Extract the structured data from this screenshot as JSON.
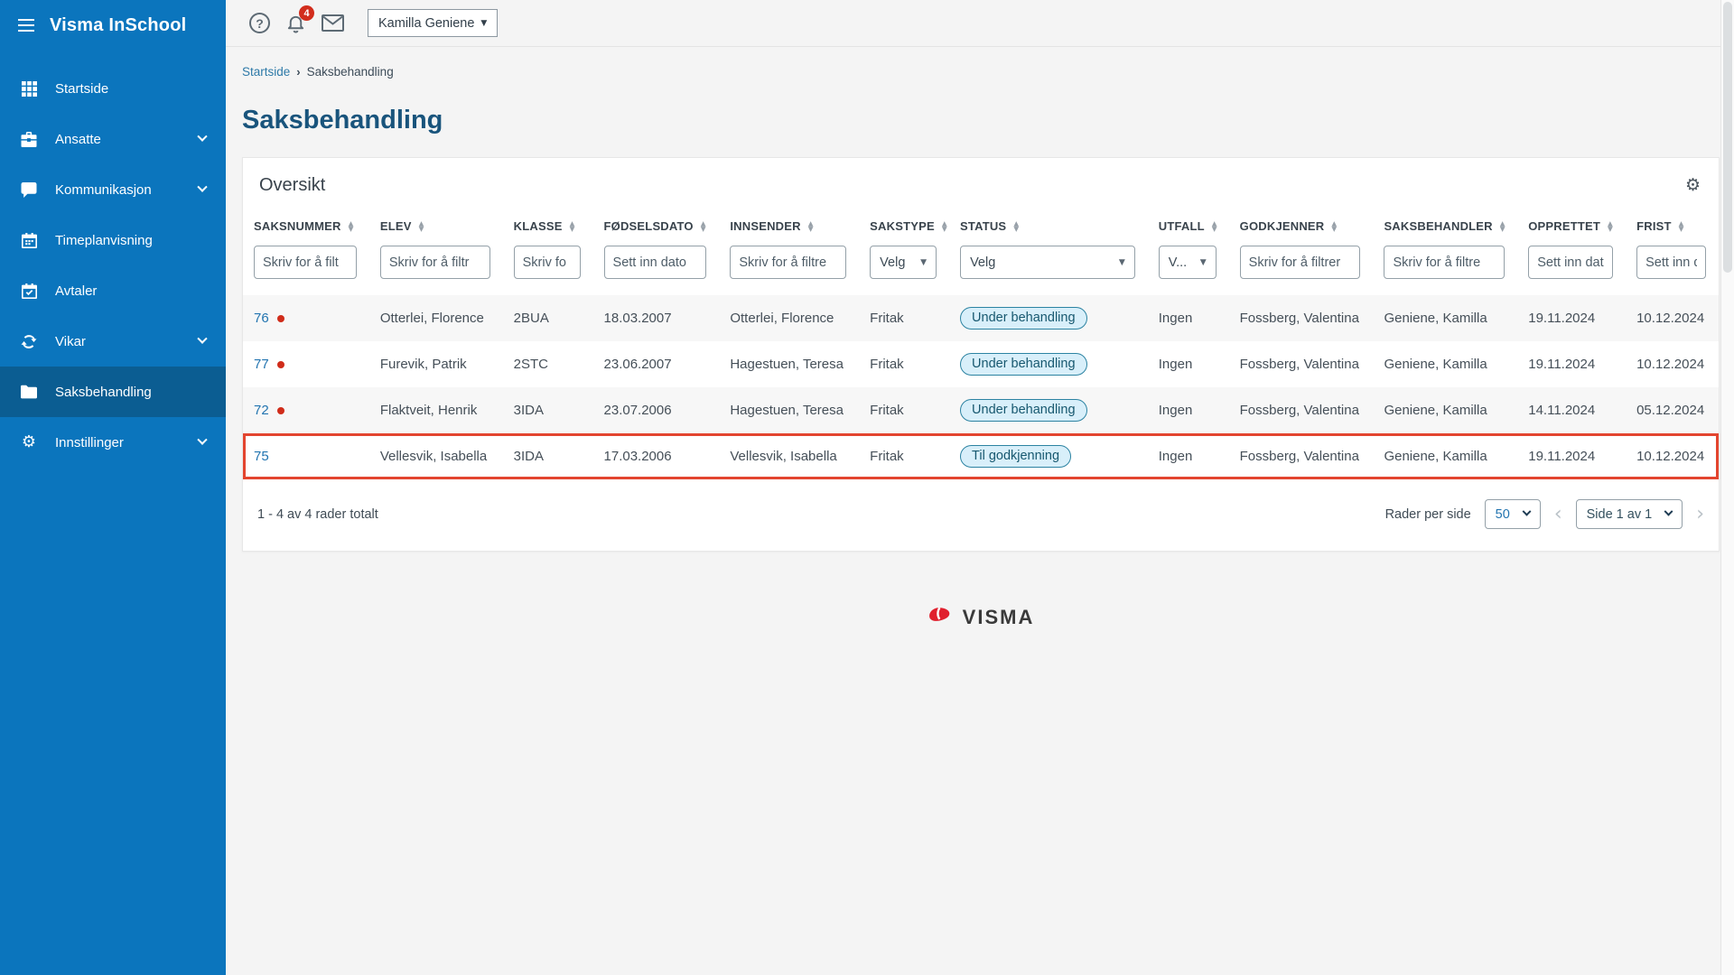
{
  "app": {
    "name": "Visma InSchool"
  },
  "topbar": {
    "user_menu": {
      "label": "Kamilla Geniene"
    },
    "notifications": {
      "count": "4"
    },
    "icons": [
      "help-icon",
      "bell-icon",
      "mail-icon"
    ]
  },
  "sidebar": {
    "items": [
      {
        "label": "Startside",
        "icon": "grid",
        "active": false,
        "chevron": false
      },
      {
        "label": "Ansatte",
        "icon": "briefcase",
        "active": false,
        "chevron": true
      },
      {
        "label": "Kommunikasjon",
        "icon": "chat",
        "active": false,
        "chevron": true
      },
      {
        "label": "Timeplanvisning",
        "icon": "calendar",
        "active": false,
        "chevron": false
      },
      {
        "label": "Avtaler",
        "icon": "calendar-check",
        "active": false,
        "chevron": false
      },
      {
        "label": "Vikar",
        "icon": "refresh",
        "active": false,
        "chevron": true
      },
      {
        "label": "Saksbehandling",
        "icon": "folder",
        "active": true,
        "chevron": false
      },
      {
        "label": "Innstillinger",
        "icon": "gear",
        "active": false,
        "chevron": true
      }
    ]
  },
  "breadcrumb": {
    "home": "Startside",
    "current": "Saksbehandling"
  },
  "page": {
    "title": "Saksbehandling"
  },
  "card": {
    "title": "Oversikt"
  },
  "table": {
    "columns": [
      {
        "label": "SAKSNUMMER",
        "filter": {
          "kind": "text",
          "placeholder": "Skriv for å filt"
        }
      },
      {
        "label": "ELEV",
        "filter": {
          "kind": "text",
          "placeholder": "Skriv for å filtr"
        }
      },
      {
        "label": "KLASSE",
        "filter": {
          "kind": "text",
          "placeholder": "Skriv fo"
        }
      },
      {
        "label": "FØDSELSDATO",
        "filter": {
          "kind": "date",
          "placeholder": "Sett inn dato"
        }
      },
      {
        "label": "INNSENDER",
        "filter": {
          "kind": "text",
          "placeholder": "Skriv for å filtre"
        }
      },
      {
        "label": "SAKSTYPE",
        "filter": {
          "kind": "select",
          "value": "Velg"
        }
      },
      {
        "label": "STATUS",
        "filter": {
          "kind": "select",
          "value": "Velg"
        }
      },
      {
        "label": "UTFALL",
        "filter": {
          "kind": "select",
          "value": "V..."
        }
      },
      {
        "label": "GODKJENNER",
        "filter": {
          "kind": "text",
          "placeholder": "Skriv for å filtrer"
        }
      },
      {
        "label": "SAKSBEHANDLER",
        "filter": {
          "kind": "text",
          "placeholder": "Skriv for å filtre"
        }
      },
      {
        "label": "OPPRETTET",
        "filter": {
          "kind": "date",
          "placeholder": "Sett inn dat"
        }
      },
      {
        "label": "FRIST",
        "filter": {
          "kind": "date",
          "placeholder": "Sett inn d"
        }
      }
    ],
    "rows": [
      {
        "saksnummer": "76",
        "unread": true,
        "highlighted": false,
        "elev": "Otterlei, Florence",
        "klasse": "2BUA",
        "fodselsdato": "18.03.2007",
        "innsender": "Otterlei, Florence",
        "sakstype": "Fritak",
        "status": "Under behandling",
        "utfall": "Ingen",
        "godkjenner": "Fossberg, Valentina",
        "saksbehandler": "Geniene, Kamilla",
        "opprettet": "19.11.2024",
        "frist": "10.12.2024"
      },
      {
        "saksnummer": "77",
        "unread": true,
        "highlighted": false,
        "elev": "Furevik, Patrik",
        "klasse": "2STC",
        "fodselsdato": "23.06.2007",
        "innsender": "Hagestuen, Teresa",
        "sakstype": "Fritak",
        "status": "Under behandling",
        "utfall": "Ingen",
        "godkjenner": "Fossberg, Valentina",
        "saksbehandler": "Geniene, Kamilla",
        "opprettet": "19.11.2024",
        "frist": "10.12.2024"
      },
      {
        "saksnummer": "72",
        "unread": true,
        "highlighted": false,
        "elev": "Flaktveit, Henrik",
        "klasse": "3IDA",
        "fodselsdato": "23.07.2006",
        "innsender": "Hagestuen, Teresa",
        "sakstype": "Fritak",
        "status": "Under behandling",
        "utfall": "Ingen",
        "godkjenner": "Fossberg, Valentina",
        "saksbehandler": "Geniene, Kamilla",
        "opprettet": "14.11.2024",
        "frist": "05.12.2024"
      },
      {
        "saksnummer": "75",
        "unread": false,
        "highlighted": true,
        "elev": "Vellesvik, Isabella",
        "klasse": "3IDA",
        "fodselsdato": "17.03.2006",
        "innsender": "Vellesvik, Isabella",
        "sakstype": "Fritak",
        "status": "Til godkjenning",
        "utfall": "Ingen",
        "godkjenner": "Fossberg, Valentina",
        "saksbehandler": "Geniene, Kamilla",
        "opprettet": "19.11.2024",
        "frist": "10.12.2024"
      }
    ]
  },
  "pagination": {
    "summary": "1 - 4 av 4 rader totalt",
    "rows_per_page_label": "Rader per side",
    "page_size": "50",
    "page_text": "Side 1 av 1",
    "prev_icon": "chevron-left",
    "next_icon": "chevron-right"
  },
  "footer": {
    "logo_text": "VISMA"
  },
  "colors": {
    "sidebar_blue": "#0b75bd",
    "sidebar_active_blue": "#0b5d92",
    "title_blue": "#19547c",
    "link_blue": "#2274b0",
    "highlight_red": "#e3452f",
    "unread_dot_red": "#d02c1a",
    "badge_red": "#d22d1c",
    "pill_bg": "#d8effa",
    "pill_border": "#2c83a2",
    "pill_text": "#17586f"
  }
}
